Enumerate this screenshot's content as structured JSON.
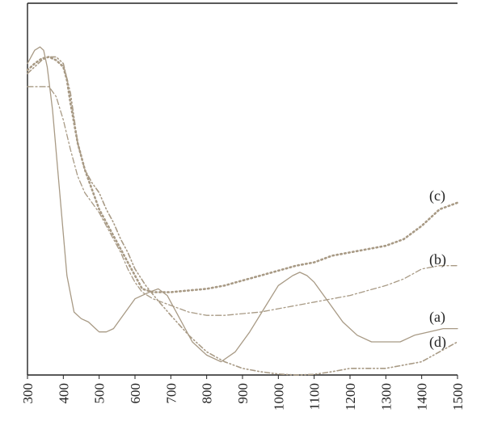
{
  "chart_data": {
    "type": "line",
    "title": "",
    "xlabel": "",
    "ylabel": "",
    "xlim": [
      300,
      1500
    ],
    "ylim": [
      0,
      1
    ],
    "xticks": [
      300,
      400,
      500,
      600,
      700,
      800,
      900,
      1000,
      1100,
      1200,
      1300,
      1400,
      1500
    ],
    "grid": false,
    "line_color": "#a89a85",
    "series": [
      {
        "name": "(a)",
        "style": "solid",
        "x": [
          300,
          320,
          335,
          345,
          355,
          370,
          390,
          410,
          430,
          450,
          470,
          490,
          500,
          520,
          540,
          560,
          600,
          640,
          665,
          690,
          720,
          760,
          800,
          840,
          880,
          920,
          960,
          1000,
          1040,
          1060,
          1080,
          1100,
          1140,
          1180,
          1220,
          1260,
          1300,
          1340,
          1380,
          1420,
          1460,
          1500
        ],
        "y": [
          0.94,
          0.98,
          0.99,
          0.98,
          0.93,
          0.8,
          0.55,
          0.3,
          0.19,
          0.17,
          0.16,
          0.14,
          0.13,
          0.13,
          0.14,
          0.17,
          0.23,
          0.25,
          0.26,
          0.24,
          0.18,
          0.1,
          0.06,
          0.04,
          0.07,
          0.13,
          0.2,
          0.27,
          0.3,
          0.31,
          0.3,
          0.28,
          0.22,
          0.16,
          0.12,
          0.1,
          0.1,
          0.1,
          0.12,
          0.13,
          0.14,
          0.14
        ]
      },
      {
        "name": "(b)",
        "style": "dash-dot",
        "x": [
          300,
          320,
          340,
          360,
          380,
          400,
          420,
          440,
          460,
          480,
          500,
          520,
          540,
          560,
          580,
          600,
          620,
          650,
          700,
          750,
          800,
          850,
          900,
          950,
          1000,
          1050,
          1100,
          1150,
          1200,
          1250,
          1300,
          1350,
          1400,
          1450,
          1500
        ],
        "y": [
          0.87,
          0.87,
          0.87,
          0.87,
          0.84,
          0.77,
          0.68,
          0.6,
          0.55,
          0.52,
          0.49,
          0.45,
          0.41,
          0.37,
          0.32,
          0.28,
          0.25,
          0.23,
          0.21,
          0.19,
          0.18,
          0.18,
          0.185,
          0.19,
          0.2,
          0.21,
          0.22,
          0.23,
          0.24,
          0.255,
          0.27,
          0.29,
          0.32,
          0.33,
          0.33
        ]
      },
      {
        "name": "(c)",
        "style": "dotted",
        "x": [
          300,
          320,
          340,
          360,
          380,
          400,
          410,
          420,
          440,
          460,
          480,
          500,
          520,
          540,
          560,
          580,
          600,
          620,
          650,
          700,
          750,
          800,
          850,
          900,
          950,
          1000,
          1050,
          1100,
          1150,
          1200,
          1250,
          1300,
          1350,
          1400,
          1450,
          1500
        ],
        "y": [
          0.92,
          0.94,
          0.955,
          0.96,
          0.95,
          0.93,
          0.89,
          0.82,
          0.7,
          0.62,
          0.56,
          0.5,
          0.46,
          0.42,
          0.38,
          0.34,
          0.3,
          0.26,
          0.25,
          0.25,
          0.255,
          0.26,
          0.27,
          0.285,
          0.3,
          0.315,
          0.33,
          0.34,
          0.36,
          0.37,
          0.38,
          0.39,
          0.41,
          0.45,
          0.5,
          0.52
        ]
      },
      {
        "name": "(d)",
        "style": "dash-dot-dot",
        "x": [
          300,
          320,
          340,
          360,
          380,
          400,
          420,
          440,
          460,
          480,
          500,
          520,
          540,
          560,
          580,
          600,
          630,
          660,
          700,
          750,
          800,
          850,
          900,
          950,
          1000,
          1050,
          1100,
          1150,
          1200,
          1250,
          1300,
          1350,
          1400,
          1450,
          1500
        ],
        "y": [
          0.91,
          0.93,
          0.95,
          0.96,
          0.96,
          0.94,
          0.85,
          0.7,
          0.62,
          0.58,
          0.55,
          0.5,
          0.46,
          0.41,
          0.37,
          0.32,
          0.27,
          0.23,
          0.18,
          0.12,
          0.07,
          0.04,
          0.02,
          0.01,
          0.003,
          0.0,
          0.002,
          0.01,
          0.02,
          0.02,
          0.02,
          0.03,
          0.04,
          0.07,
          0.1
        ]
      }
    ]
  }
}
